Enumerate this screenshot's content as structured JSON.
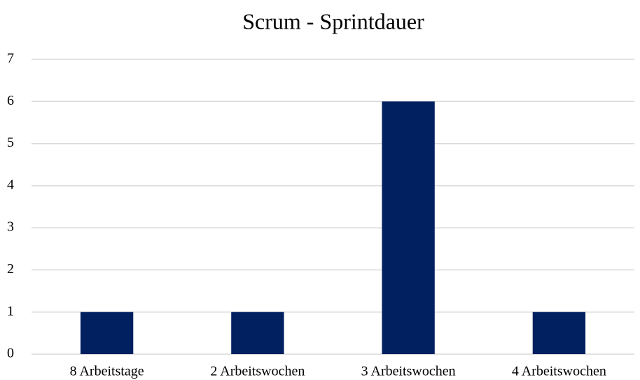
{
  "chart_data": {
    "type": "bar",
    "title": "Scrum - Sprintdauer",
    "categories": [
      "8 Arbeitstage",
      "2 Arbeitswochen",
      "3 Arbeitswochen",
      "4 Arbeitswochen"
    ],
    "values": [
      1,
      1,
      6,
      1
    ],
    "color": "#002060",
    "ylim": [
      0,
      7
    ],
    "yticks": [
      0,
      1,
      2,
      3,
      4,
      5,
      6,
      7
    ],
    "grid": true
  }
}
